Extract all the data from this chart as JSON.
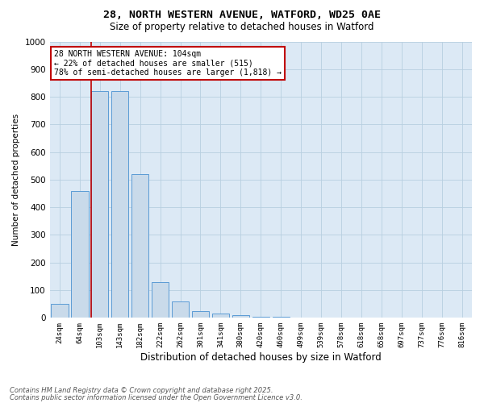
{
  "title_line1": "28, NORTH WESTERN AVENUE, WATFORD, WD25 0AE",
  "title_line2": "Size of property relative to detached houses in Watford",
  "xlabel": "Distribution of detached houses by size in Watford",
  "ylabel": "Number of detached properties",
  "bar_labels": [
    "24sqm",
    "64sqm",
    "103sqm",
    "143sqm",
    "182sqm",
    "222sqm",
    "262sqm",
    "301sqm",
    "341sqm",
    "380sqm",
    "420sqm",
    "460sqm",
    "499sqm",
    "539sqm",
    "578sqm",
    "618sqm",
    "658sqm",
    "697sqm",
    "737sqm",
    "776sqm",
    "816sqm"
  ],
  "bar_values": [
    50,
    460,
    820,
    820,
    520,
    130,
    60,
    25,
    15,
    10,
    5,
    3,
    2,
    1,
    1,
    0,
    0,
    0,
    0,
    0,
    0
  ],
  "bar_color": "#c9daea",
  "bar_edgecolor": "#5b9bd5",
  "marker_index": 2,
  "marker_color": "#c00000",
  "annotation_text": "28 NORTH WESTERN AVENUE: 104sqm\n← 22% of detached houses are smaller (515)\n78% of semi-detached houses are larger (1,818) →",
  "annotation_box_color": "#c00000",
  "ylim": [
    0,
    1000
  ],
  "yticks": [
    0,
    100,
    200,
    300,
    400,
    500,
    600,
    700,
    800,
    900,
    1000
  ],
  "footer_line1": "Contains HM Land Registry data © Crown copyright and database right 2025.",
  "footer_line2": "Contains public sector information licensed under the Open Government Licence v3.0.",
  "bg_color": "#ffffff",
  "plot_bg_color": "#dce9f5",
  "grid_color": "#b8cfe0"
}
